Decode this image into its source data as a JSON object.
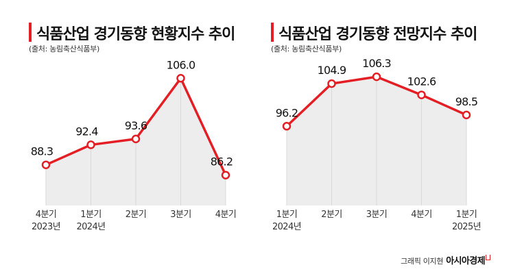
{
  "chart_data": [
    {
      "type": "area",
      "title": "식품산업 경기동향 현황지수 추이",
      "source": "(출처: 농림축산식품부)",
      "categories": [
        {
          "line1": "4분기",
          "line2": "2023년"
        },
        {
          "line1": "1분기",
          "line2": "2024년"
        },
        {
          "line1": "2분기",
          "line2": ""
        },
        {
          "line1": "3분기",
          "line2": ""
        },
        {
          "line1": "4분기",
          "line2": ""
        }
      ],
      "values": [
        88.3,
        92.4,
        93.6,
        106.0,
        86.2
      ],
      "value_labels": [
        "88.3",
        "92.4",
        "93.6",
        "106.0",
        "86.2"
      ],
      "ylim": [
        80,
        108
      ],
      "colors": {
        "line": "#e31e24",
        "fill": "#ededed",
        "drop": "#d9d9d9"
      }
    },
    {
      "type": "area",
      "title": "식품산업 경기동향 전망지수 추이",
      "source": "(출처: 농림축산식품부)",
      "categories": [
        {
          "line1": "1분기",
          "line2": "2024년"
        },
        {
          "line1": "2분기",
          "line2": ""
        },
        {
          "line1": "3분기",
          "line2": ""
        },
        {
          "line1": "4분기",
          "line2": ""
        },
        {
          "line1": "1분기",
          "line2": "2025년"
        }
      ],
      "values": [
        96.2,
        104.9,
        106.3,
        102.6,
        98.5
      ],
      "value_labels": [
        "96.2",
        "104.9",
        "106.3",
        "102.6",
        "98.5"
      ],
      "ylim": [
        80,
        108
      ],
      "colors": {
        "line": "#e31e24",
        "fill": "#ededed",
        "drop": "#d9d9d9"
      }
    }
  ],
  "credit": {
    "text": "그래픽 이지현",
    "brand": "아시아경제"
  }
}
